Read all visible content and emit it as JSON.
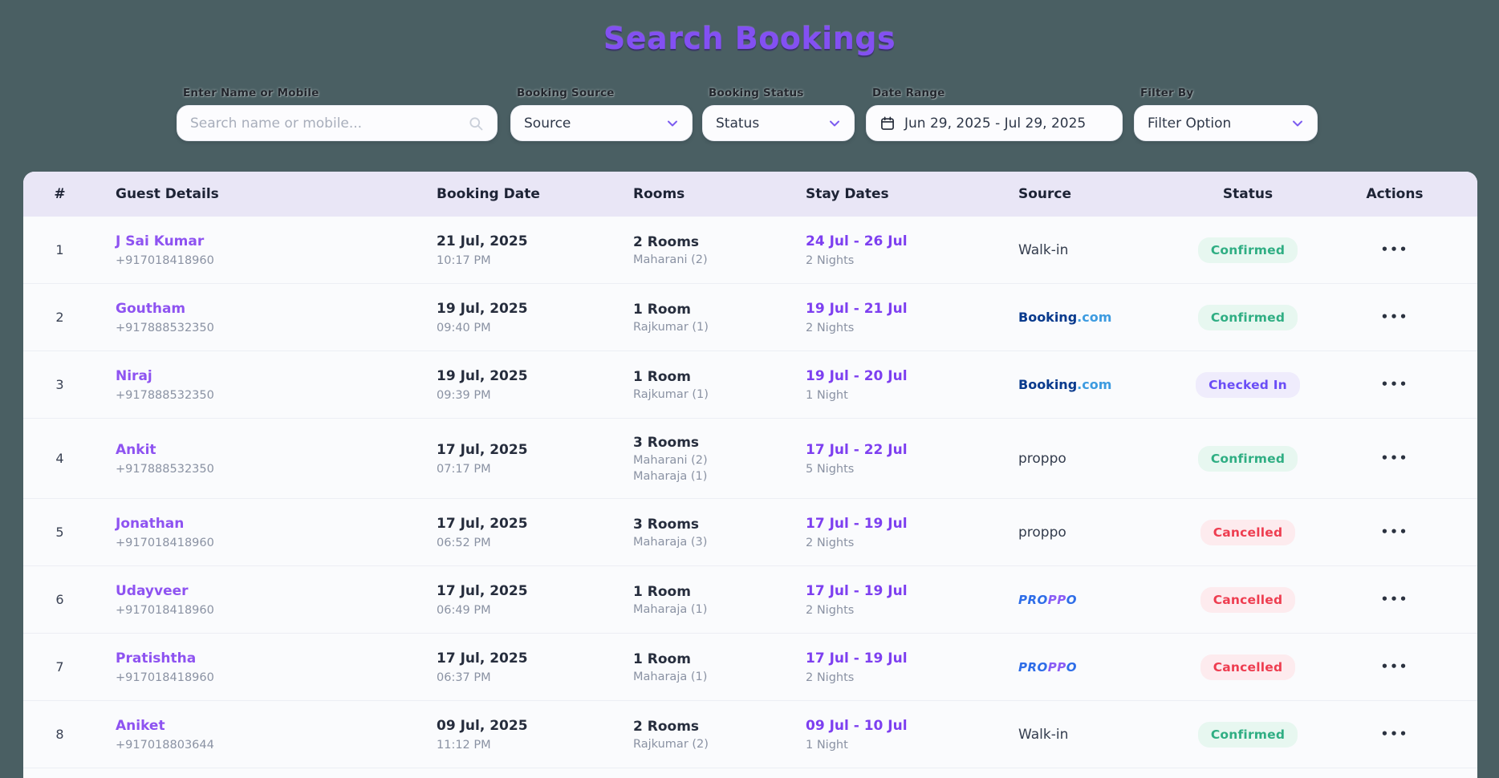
{
  "page": {
    "title": "Search Bookings"
  },
  "theme": {
    "background": "#4a5f63",
    "title_purple": "#8350f2",
    "header_bg": "#e9e6f6",
    "name_purple": "#8e53f1",
    "stay_purple": "#7d3ff0",
    "confirmed_color": "#2fae83",
    "checked_in_color": "#6a4df6",
    "cancelled_color": "#ee3d50",
    "booking_navy": "#093a8d",
    "booking_blue": "#3d9be0",
    "proppo_blue": "#2e6de8",
    "proppo_purple": "#8a5cf5"
  },
  "filters": {
    "search": {
      "label": "Enter Name or Mobile",
      "placeholder": "Search name or mobile...",
      "value": "",
      "icon": "search-icon"
    },
    "source": {
      "label": "Booking Source",
      "value": "Source",
      "icon": "chevron-down-icon"
    },
    "status": {
      "label": "Booking Status",
      "value": "Status",
      "icon": "chevron-down-icon"
    },
    "date_range": {
      "label": "Date Range",
      "value": "Jun 29, 2025 - Jul 29, 2025",
      "icon": "calendar-icon"
    },
    "filter_by": {
      "label": "Filter By",
      "value": "Filter Option",
      "icon": "chevron-down-icon"
    }
  },
  "table": {
    "columns": [
      "#",
      "Guest Details",
      "Booking Date",
      "Rooms",
      "Stay Dates",
      "Source",
      "Status",
      "Actions"
    ],
    "actions_icon": "ellipsis-icon",
    "actions_glyph": "•••",
    "rows": [
      {
        "index": "1",
        "guest_name": "J Sai Kumar",
        "guest_phone": "+917018418960",
        "booking_date": "21 Jul, 2025",
        "booking_time": "10:17 PM",
        "rooms": "2 Rooms",
        "room_details": [
          "Maharani (2)"
        ],
        "stay_dates": "24 Jul - 26 Jul",
        "nights": "2 Nights",
        "source": {
          "kind": "text",
          "label": "Walk-in"
        },
        "status": {
          "label": "Confirmed",
          "variant": "confirmed"
        },
        "tall": false
      },
      {
        "index": "2",
        "guest_name": "Goutham",
        "guest_phone": "+917888532350",
        "booking_date": "19 Jul, 2025",
        "booking_time": "09:40 PM",
        "rooms": "1 Room",
        "room_details": [
          "Rajkumar (1)"
        ],
        "stay_dates": "19 Jul - 21 Jul",
        "nights": "2 Nights",
        "source": {
          "kind": "booking",
          "parts": [
            "Booking",
            ".com"
          ]
        },
        "status": {
          "label": "Confirmed",
          "variant": "confirmed"
        },
        "tall": false
      },
      {
        "index": "3",
        "guest_name": "Niraj",
        "guest_phone": "+917888532350",
        "booking_date": "19 Jul, 2025",
        "booking_time": "09:39 PM",
        "rooms": "1 Room",
        "room_details": [
          "Rajkumar (1)"
        ],
        "stay_dates": "19 Jul - 20 Jul",
        "nights": "1 Night",
        "source": {
          "kind": "booking",
          "parts": [
            "Booking",
            ".com"
          ]
        },
        "status": {
          "label": "Checked In",
          "variant": "checked-in"
        },
        "tall": false
      },
      {
        "index": "4",
        "guest_name": "Ankit",
        "guest_phone": "+917888532350",
        "booking_date": "17 Jul, 2025",
        "booking_time": "07:17 PM",
        "rooms": "3 Rooms",
        "room_details": [
          "Maharani (2)",
          "Maharaja (1)"
        ],
        "stay_dates": "17 Jul - 22 Jul",
        "nights": "5 Nights",
        "source": {
          "kind": "text",
          "label": "proppo"
        },
        "status": {
          "label": "Confirmed",
          "variant": "confirmed"
        },
        "tall": true
      },
      {
        "index": "5",
        "guest_name": "Jonathan",
        "guest_phone": "+917018418960",
        "booking_date": "17 Jul, 2025",
        "booking_time": "06:52 PM",
        "rooms": "3 Rooms",
        "room_details": [
          "Maharaja (3)"
        ],
        "stay_dates": "17 Jul - 19 Jul",
        "nights": "2 Nights",
        "source": {
          "kind": "text",
          "label": "proppo"
        },
        "status": {
          "label": "Cancelled",
          "variant": "cancelled"
        },
        "tall": false
      },
      {
        "index": "6",
        "guest_name": "Udayveer",
        "guest_phone": "+917018418960",
        "booking_date": "17 Jul, 2025",
        "booking_time": "06:49 PM",
        "rooms": "1 Room",
        "room_details": [
          "Maharaja (1)"
        ],
        "stay_dates": "17 Jul - 19 Jul",
        "nights": "2 Nights",
        "source": {
          "kind": "proppo-logo",
          "parts": [
            "PRO",
            "PP",
            "O"
          ]
        },
        "status": {
          "label": "Cancelled",
          "variant": "cancelled"
        },
        "tall": false
      },
      {
        "index": "7",
        "guest_name": "Pratishtha",
        "guest_phone": "+917018418960",
        "booking_date": "17 Jul, 2025",
        "booking_time": "06:37 PM",
        "rooms": "1 Room",
        "room_details": [
          "Maharaja (1)"
        ],
        "stay_dates": "17 Jul - 19 Jul",
        "nights": "2 Nights",
        "source": {
          "kind": "proppo-logo",
          "parts": [
            "PRO",
            "PP",
            "O"
          ]
        },
        "status": {
          "label": "Cancelled",
          "variant": "cancelled"
        },
        "tall": false
      },
      {
        "index": "8",
        "guest_name": "Aniket",
        "guest_phone": "+917018803644",
        "booking_date": "09 Jul, 2025",
        "booking_time": "11:12 PM",
        "rooms": "2 Rooms",
        "room_details": [
          "Rajkumar (2)"
        ],
        "stay_dates": "09 Jul - 10 Jul",
        "nights": "1 Night",
        "source": {
          "kind": "text",
          "label": "Walk-in"
        },
        "status": {
          "label": "Confirmed",
          "variant": "confirmed"
        },
        "tall": false
      }
    ]
  }
}
